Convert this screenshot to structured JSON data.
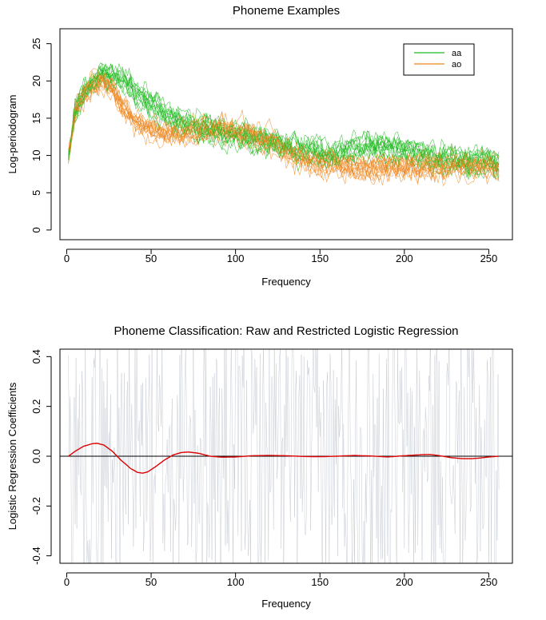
{
  "chart_data": [
    {
      "type": "line",
      "title": "Phoneme Examples",
      "xlabel": "Frequency",
      "ylabel": "Log-periodogram",
      "xlim": [
        0,
        256
      ],
      "ylim": [
        0,
        26
      ],
      "xticks": [
        0,
        50,
        100,
        150,
        200,
        250
      ],
      "yticks": [
        0,
        5,
        10,
        15,
        20,
        25
      ],
      "grid": false,
      "legend_position": "top-right",
      "series": [
        {
          "name": "aa",
          "color": "#22BB22",
          "envelope": {
            "x": [
              1,
              5,
              10,
              15,
              20,
              25,
              30,
              35,
              40,
              50,
              60,
              70,
              80,
              90,
              100,
              110,
              120,
              130,
              140,
              150,
              160,
              170,
              180,
              190,
              200,
              210,
              220,
              230,
              240,
              250,
              256
            ],
            "y": [
              11,
              16,
              18.5,
              20,
              21,
              21,
              20.5,
              20,
              19,
              17,
              15.5,
              14.5,
              14,
              13.5,
              13,
              12.5,
              12,
              11.5,
              11,
              10.5,
              10.5,
              11,
              11.5,
              11.5,
              11,
              10.5,
              10,
              9.5,
              9.5,
              9.5,
              9
            ]
          }
        },
        {
          "name": "ao",
          "color": "#EE8822",
          "envelope": {
            "x": [
              1,
              5,
              10,
              15,
              20,
              25,
              30,
              35,
              40,
              50,
              60,
              70,
              80,
              90,
              100,
              110,
              120,
              130,
              140,
              150,
              160,
              170,
              180,
              190,
              200,
              210,
              220,
              230,
              240,
              250,
              256
            ],
            "y": [
              11,
              16,
              18,
              19.5,
              20,
              19.5,
              18,
              16,
              14.5,
              13.5,
              13,
              13,
              13.5,
              13.5,
              13,
              12.5,
              12,
              10.5,
              9.5,
              9,
              9,
              8.5,
              8.5,
              8.5,
              8.5,
              8.5,
              8.5,
              8.5,
              8.5,
              8.5,
              8
            ]
          }
        }
      ]
    },
    {
      "type": "line",
      "title": "Phoneme Classification: Raw and Restricted Logistic Regression",
      "xlabel": "Frequency",
      "ylabel": "Logistic Regression Coefficients",
      "xlim": [
        0,
        256
      ],
      "ylim": [
        -0.4,
        0.4
      ],
      "xticks": [
        0,
        50,
        100,
        150,
        200,
        250
      ],
      "yticks": [
        -0.4,
        -0.2,
        0.0,
        0.2,
        0.4
      ],
      "grid": false,
      "reference_line": 0.0,
      "series": [
        {
          "color": "#BFC5CE",
          "description_values": "raw coefficients, highly oscillating between about -0.5 and 0.5"
        },
        {
          "color": "#DD0000",
          "x": [
            1,
            5,
            10,
            15,
            18,
            22,
            27,
            32,
            38,
            42,
            45,
            48,
            53,
            58,
            63,
            68,
            72,
            78,
            85,
            92,
            100,
            110,
            120,
            130,
            140,
            150,
            160,
            170,
            180,
            190,
            200,
            210,
            215,
            220,
            228,
            235,
            240,
            245,
            250,
            256
          ],
          "y": [
            0.0,
            0.02,
            0.04,
            0.05,
            0.052,
            0.045,
            0.02,
            -0.015,
            -0.05,
            -0.065,
            -0.068,
            -0.063,
            -0.04,
            -0.015,
            0.005,
            0.015,
            0.017,
            0.012,
            0.0,
            -0.004,
            -0.003,
            0.002,
            0.003,
            0.002,
            -0.001,
            -0.002,
            0.0,
            0.003,
            0.001,
            -0.003,
            0.002,
            0.006,
            0.007,
            0.003,
            -0.006,
            -0.01,
            -0.01,
            -0.007,
            -0.003,
            0.0
          ]
        }
      ]
    }
  ]
}
